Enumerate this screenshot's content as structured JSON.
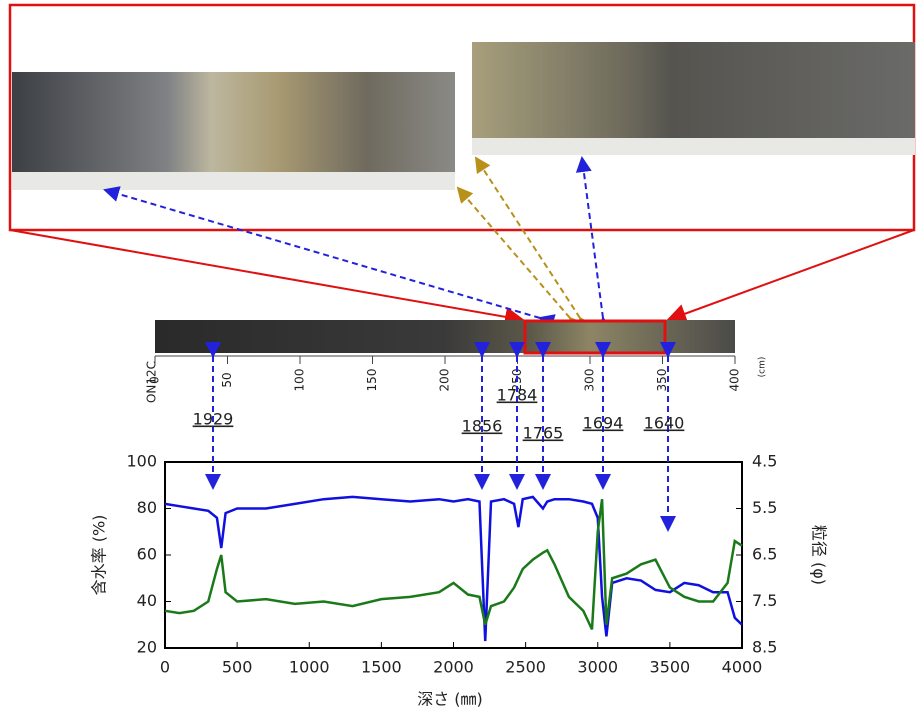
{
  "chart_data": {
    "type": "line",
    "xlabel": "深さ (㎜)",
    "ylabel": "含水率 (%)",
    "y2label": "粒径 (φ)",
    "x": [
      0,
      100,
      200,
      300,
      360,
      390,
      420,
      500,
      700,
      900,
      1100,
      1300,
      1500,
      1700,
      1900,
      2000,
      2100,
      2180,
      2220,
      2260,
      2350,
      2420,
      2450,
      2480,
      2550,
      2620,
      2650,
      2700,
      2800,
      2900,
      2960,
      3000,
      3030,
      3060,
      3100,
      3200,
      3300,
      3400,
      3500,
      3600,
      3700,
      3800,
      3900,
      3950,
      4000
    ],
    "series": [
      {
        "color": "#1010e0",
        "values": [
          82,
          81,
          80,
          79,
          76,
          63,
          78,
          80,
          80,
          82,
          84,
          85,
          84,
          83,
          84,
          83,
          84,
          83,
          23,
          83,
          84,
          82,
          72,
          84,
          85,
          80,
          83,
          84,
          84,
          83,
          82,
          76,
          42,
          25,
          48,
          50,
          49,
          45,
          44,
          48,
          47,
          44,
          44,
          33,
          30
        ]
      },
      {
        "color": "#1a7a1a",
        "axis": "y2",
        "values": [
          7.7,
          7.75,
          7.7,
          7.5,
          6.8,
          6.5,
          7.3,
          7.5,
          7.45,
          7.55,
          7.5,
          7.6,
          7.45,
          7.4,
          7.3,
          7.1,
          7.35,
          7.4,
          8.0,
          7.6,
          7.5,
          7.2,
          7.0,
          6.8,
          6.6,
          6.45,
          6.4,
          6.7,
          7.4,
          7.7,
          8.1,
          6.0,
          5.3,
          8.0,
          7.0,
          6.9,
          6.7,
          6.6,
          7.2,
          7.4,
          7.5,
          7.5,
          7.1,
          6.2,
          6.3
        ]
      }
    ],
    "xlim": [
      0,
      4000
    ],
    "xticks": [
      0,
      500,
      1000,
      1500,
      2000,
      2500,
      3000,
      3500,
      4000
    ],
    "ylim": [
      20,
      100
    ],
    "yticks": [
      20,
      40,
      60,
      80,
      100
    ],
    "y2lim": [
      8.5,
      4.5
    ],
    "y2ticks": [
      4.5,
      5.5,
      6.5,
      7.5,
      8.5
    ],
    "annotations": [
      "1929",
      "1856",
      "1784",
      "1765",
      "1694",
      "1640"
    ],
    "core_scale": {
      "label": "ON12C",
      "unit": "(cm)",
      "xlim": [
        0,
        400
      ],
      "xticks": [
        0,
        50,
        100,
        150,
        200,
        250,
        300,
        350,
        400
      ]
    }
  }
}
